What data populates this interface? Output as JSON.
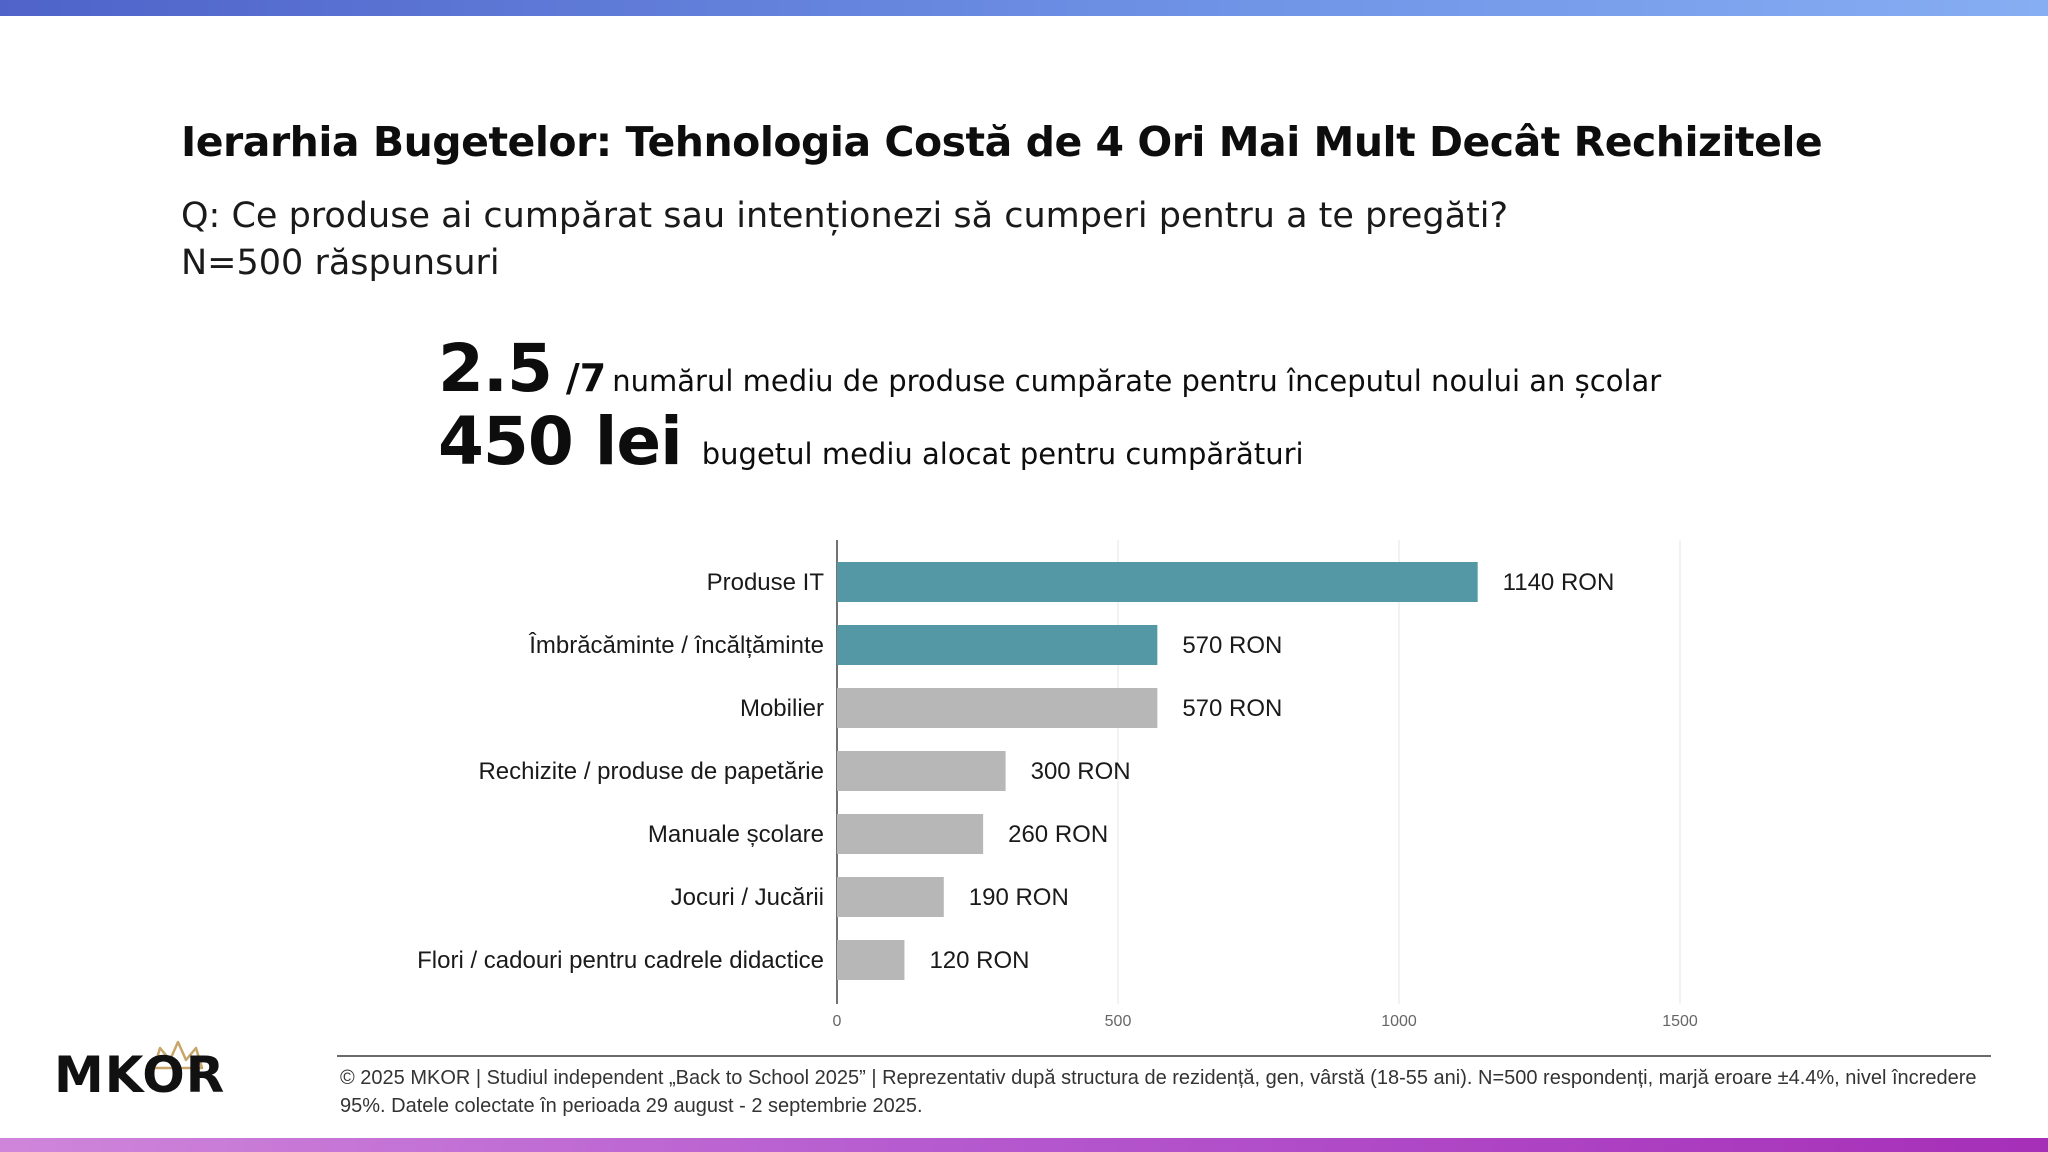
{
  "header": {
    "title": "Ierarhia Bugetelor: Tehnologia Costă de 4 Ori Mai Mult Decât Rechizitele",
    "question": "Q: Ce produse ai cumpărat sau intenționezi să cumperi pentru a te pregăti?",
    "sample": "N=500 răspunsuri"
  },
  "kpis": [
    {
      "value": "2.5",
      "suffix": "/7",
      "label": "numărul mediu de produse cumpărate pentru începutul noului an școlar"
    },
    {
      "value": "450 lei",
      "label": "bugetul mediu alocat pentru cumpărături"
    }
  ],
  "chart_data": {
    "type": "bar",
    "orientation": "horizontal",
    "categories": [
      "Produse IT",
      "Îmbrăcăminte / încălțăminte",
      "Mobilier",
      "Rechizite / produse de papetărie",
      "Manuale școlare",
      "Jocuri / Jucării",
      "Flori / cadouri pentru cadrele didactice"
    ],
    "values": [
      1140,
      570,
      570,
      300,
      260,
      190,
      120
    ],
    "value_labels": [
      "1140 RON",
      "570 RON",
      "570 RON",
      "300 RON",
      "260 RON",
      "190 RON",
      "120 RON"
    ],
    "colors": [
      "#5398a4",
      "#5398a4",
      "#b7b7b7",
      "#b7b7b7",
      "#b7b7b7",
      "#b7b7b7",
      "#b7b7b7"
    ],
    "xlim": [
      0,
      1500
    ],
    "xticks": [
      "0",
      "500",
      "1000",
      "1500"
    ],
    "grid": true
  },
  "footer": {
    "text": "© 2025 MKOR | Studiul independent „Back to School 2025” | Reprezentativ după structura de rezidență, gen, vârstă (18-55 ani). N=500 respondenți, marjă eroare ±4.4%, nivel încredere 95%. Datele colectate în perioada 29 august - 2 septembrie 2025."
  },
  "logo": {
    "text": "MKOR"
  }
}
